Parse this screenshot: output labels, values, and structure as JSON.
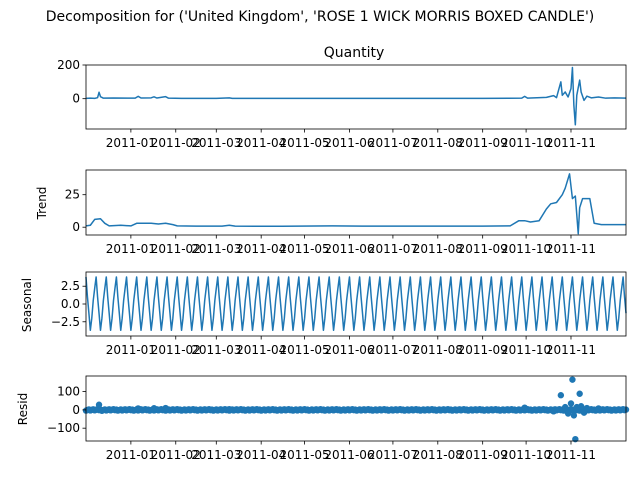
{
  "figure_title": "Decomposition for ('United Kingdom', 'ROSE 1 WICK MORRIS BOXED CANDLE')",
  "colors": {
    "series": "#1f77b4",
    "axis": "#000000",
    "background": "#ffffff"
  },
  "chart_data": [
    {
      "type": "line",
      "title": "Quantity",
      "ylabel": "",
      "ylim": [
        -180,
        200
      ],
      "yticks": [
        0,
        200
      ],
      "yticklabels": [
        "0",
        "200"
      ],
      "xlim": [
        "2010-12-01",
        "2011-12-09"
      ],
      "xtick_dates": [
        "2011-01-01",
        "2011-02-01",
        "2011-03-01",
        "2011-04-01",
        "2011-05-01",
        "2011-06-01",
        "2011-07-01",
        "2011-08-01",
        "2011-09-01",
        "2011-10-01",
        "2011-11-01"
      ],
      "xticklabels": [
        "2011-01",
        "2011-02",
        "2011-03",
        "2011-04",
        "2011-05",
        "2011-06",
        "2011-07",
        "2011-08",
        "2011-09",
        "2011-10",
        "2011-11"
      ],
      "grid": false,
      "points": [
        [
          "2010-12-01",
          2
        ],
        [
          "2010-12-04",
          3
        ],
        [
          "2010-12-07",
          2
        ],
        [
          "2010-12-09",
          6
        ],
        [
          "2010-12-10",
          38
        ],
        [
          "2010-12-11",
          12
        ],
        [
          "2010-12-13",
          3
        ],
        [
          "2010-12-20",
          4
        ],
        [
          "2011-01-04",
          3
        ],
        [
          "2011-01-06",
          14
        ],
        [
          "2011-01-08",
          4
        ],
        [
          "2011-01-15",
          5
        ],
        [
          "2011-01-17",
          11
        ],
        [
          "2011-01-19",
          4
        ],
        [
          "2011-01-25",
          12
        ],
        [
          "2011-01-27",
          3
        ],
        [
          "2011-02-05",
          2
        ],
        [
          "2011-03-01",
          2
        ],
        [
          "2011-03-10",
          5
        ],
        [
          "2011-03-12",
          2
        ],
        [
          "2011-04-15",
          2
        ],
        [
          "2011-06-01",
          2
        ],
        [
          "2011-08-01",
          2
        ],
        [
          "2011-09-01",
          2
        ],
        [
          "2011-09-28",
          3
        ],
        [
          "2011-09-30",
          14
        ],
        [
          "2011-10-02",
          3
        ],
        [
          "2011-10-15",
          8
        ],
        [
          "2011-10-20",
          18
        ],
        [
          "2011-10-22",
          6
        ],
        [
          "2011-10-25",
          100
        ],
        [
          "2011-10-26",
          20
        ],
        [
          "2011-10-28",
          40
        ],
        [
          "2011-10-30",
          10
        ],
        [
          "2011-11-01",
          60
        ],
        [
          "2011-11-02",
          185
        ],
        [
          "2011-11-03",
          -40
        ],
        [
          "2011-11-04",
          -155
        ],
        [
          "2011-11-05",
          20
        ],
        [
          "2011-11-07",
          110
        ],
        [
          "2011-11-08",
          40
        ],
        [
          "2011-11-10",
          -10
        ],
        [
          "2011-11-12",
          15
        ],
        [
          "2011-11-15",
          5
        ],
        [
          "2011-11-20",
          10
        ],
        [
          "2011-11-25",
          3
        ],
        [
          "2011-12-01",
          5
        ],
        [
          "2011-12-09",
          3
        ]
      ]
    },
    {
      "type": "line",
      "title": "",
      "ylabel": "Trend",
      "ylim": [
        -6,
        44
      ],
      "yticks": [
        0,
        25
      ],
      "yticklabels": [
        "0",
        "25"
      ],
      "xlim": [
        "2010-12-01",
        "2011-12-09"
      ],
      "xtick_dates": [
        "2011-01-01",
        "2011-02-01",
        "2011-03-01",
        "2011-04-01",
        "2011-05-01",
        "2011-06-01",
        "2011-07-01",
        "2011-08-01",
        "2011-09-01",
        "2011-10-01",
        "2011-11-01"
      ],
      "xticklabels": [
        "2011-01",
        "2011-02",
        "2011-03",
        "2011-04",
        "2011-05",
        "2011-06",
        "2011-07",
        "2011-08",
        "2011-09",
        "2011-10",
        "2011-11"
      ],
      "grid": false,
      "points": [
        [
          "2010-12-01",
          1
        ],
        [
          "2010-12-04",
          1.5
        ],
        [
          "2010-12-07",
          6
        ],
        [
          "2010-12-11",
          6.5
        ],
        [
          "2010-12-14",
          3
        ],
        [
          "2010-12-17",
          1
        ],
        [
          "2010-12-25",
          1.5
        ],
        [
          "2011-01-01",
          1
        ],
        [
          "2011-01-05",
          3
        ],
        [
          "2011-01-15",
          3
        ],
        [
          "2011-01-20",
          2.5
        ],
        [
          "2011-01-25",
          3
        ],
        [
          "2011-01-30",
          2
        ],
        [
          "2011-02-02",
          1
        ],
        [
          "2011-02-15",
          0.8
        ],
        [
          "2011-03-05",
          0.8
        ],
        [
          "2011-03-10",
          1.5
        ],
        [
          "2011-03-14",
          0.8
        ],
        [
          "2011-04-15",
          0.7
        ],
        [
          "2011-05-20",
          1
        ],
        [
          "2011-06-10",
          0.8
        ],
        [
          "2011-07-20",
          0.8
        ],
        [
          "2011-09-01",
          0.8
        ],
        [
          "2011-09-20",
          1
        ],
        [
          "2011-09-26",
          5
        ],
        [
          "2011-09-30",
          5
        ],
        [
          "2011-10-04",
          4
        ],
        [
          "2011-10-10",
          5
        ],
        [
          "2011-10-15",
          14
        ],
        [
          "2011-10-18",
          18
        ],
        [
          "2011-10-22",
          19
        ],
        [
          "2011-10-26",
          25
        ],
        [
          "2011-10-28",
          30
        ],
        [
          "2011-10-31",
          41
        ],
        [
          "2011-11-02",
          22
        ],
        [
          "2011-11-04",
          24
        ],
        [
          "2011-11-06",
          -5
        ],
        [
          "2011-11-07",
          15
        ],
        [
          "2011-11-09",
          22
        ],
        [
          "2011-11-14",
          22
        ],
        [
          "2011-11-17",
          3
        ],
        [
          "2011-11-22",
          2
        ],
        [
          "2011-12-09",
          2
        ]
      ]
    },
    {
      "type": "line",
      "title": "",
      "ylabel": "Seasonal",
      "ylim": [
        -4.5,
        4.5
      ],
      "yticks": [
        -2.5,
        0,
        2.5
      ],
      "yticklabels": [
        "−2.5",
        "0.0",
        "2.5"
      ],
      "xlim": [
        "2010-12-01",
        "2011-12-09"
      ],
      "xtick_dates": [
        "2011-01-01",
        "2011-02-01",
        "2011-03-01",
        "2011-04-01",
        "2011-05-01",
        "2011-06-01",
        "2011-07-01",
        "2011-08-01",
        "2011-09-01",
        "2011-10-01",
        "2011-11-01"
      ],
      "xticklabels": [
        "2011-01",
        "2011-02",
        "2011-03",
        "2011-04",
        "2011-05",
        "2011-06",
        "2011-07",
        "2011-08",
        "2011-09",
        "2011-10",
        "2011-11"
      ],
      "grid": false,
      "period_days": 7,
      "pattern": [
        3.8,
        1.0,
        -1.3,
        -3.7,
        -2.0,
        0.5,
        2.2
      ]
    },
    {
      "type": "scatter",
      "title": "",
      "ylabel": "Resid",
      "ylim": [
        -170,
        185
      ],
      "yticks": [
        -100,
        0,
        100
      ],
      "yticklabels": [
        "−100",
        "0",
        "100"
      ],
      "xlim": [
        "2010-12-01",
        "2011-12-09"
      ],
      "xtick_dates": [
        "2011-01-01",
        "2011-02-01",
        "2011-03-01",
        "2011-04-01",
        "2011-05-01",
        "2011-06-01",
        "2011-07-01",
        "2011-08-01",
        "2011-09-01",
        "2011-10-01",
        "2011-11-01"
      ],
      "xticklabels": [
        "2011-01",
        "2011-02",
        "2011-03",
        "2011-04",
        "2011-05",
        "2011-06",
        "2011-07",
        "2011-08",
        "2011-09",
        "2011-10",
        "2011-11"
      ],
      "grid": false,
      "baseline_range": [
        "2010-12-01",
        "2011-12-09"
      ],
      "baseline_value": 0,
      "points": [
        [
          "2010-12-10",
          28
        ],
        [
          "2010-12-12",
          -5
        ],
        [
          "2011-01-06",
          8
        ],
        [
          "2011-01-17",
          9
        ],
        [
          "2011-01-25",
          10
        ],
        [
          "2011-03-10",
          4
        ],
        [
          "2011-09-30",
          12
        ],
        [
          "2011-10-20",
          -8
        ],
        [
          "2011-10-25",
          80
        ],
        [
          "2011-10-28",
          15
        ],
        [
          "2011-10-30",
          -20
        ],
        [
          "2011-11-01",
          35
        ],
        [
          "2011-11-02",
          165
        ],
        [
          "2011-11-03",
          -30
        ],
        [
          "2011-11-04",
          -160
        ],
        [
          "2011-11-05",
          15
        ],
        [
          "2011-11-07",
          88
        ],
        [
          "2011-11-08",
          20
        ],
        [
          "2011-11-10",
          -15
        ],
        [
          "2011-11-12",
          10
        ],
        [
          "2011-11-20",
          8
        ]
      ]
    }
  ]
}
